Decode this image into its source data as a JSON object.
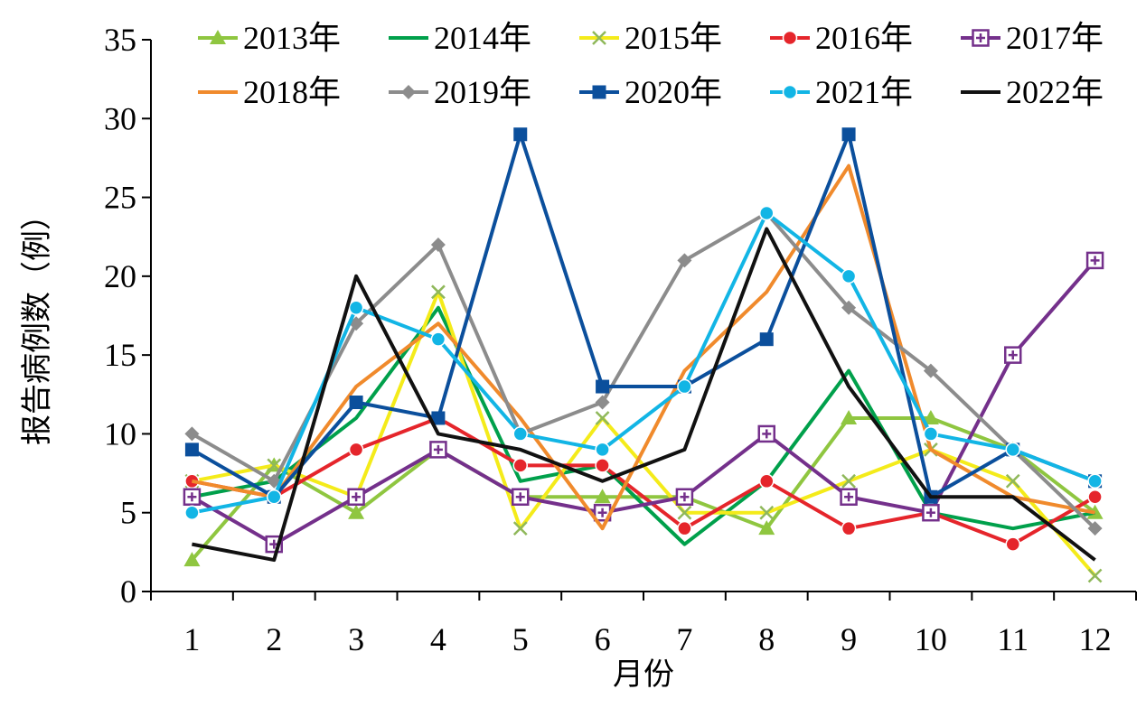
{
  "chart_data": {
    "type": "line",
    "xlabel": "月份",
    "ylabel": "报告病例数（例）",
    "categories": [
      "1",
      "2",
      "3",
      "4",
      "5",
      "6",
      "7",
      "8",
      "9",
      "10",
      "11",
      "12"
    ],
    "ylim": [
      0,
      35
    ],
    "yticks": [
      "0",
      "5",
      "10",
      "15",
      "20",
      "25",
      "30",
      "35"
    ],
    "legend_position": "top",
    "series": [
      {
        "name": "2013年",
        "color": "#8fc640",
        "marker": "triangle",
        "values": [
          2,
          8,
          5,
          9,
          6,
          6,
          6,
          4,
          11,
          11,
          9,
          5
        ]
      },
      {
        "name": "2014年",
        "color": "#00a04b",
        "marker": "none",
        "values": [
          6,
          7,
          11,
          18,
          7,
          8,
          3,
          7,
          14,
          5,
          4,
          5
        ]
      },
      {
        "name": "2015年",
        "color": "#f4eb1a",
        "marker": "x",
        "values": [
          7,
          8,
          6,
          19,
          4,
          11,
          5,
          5,
          7,
          9,
          7,
          1
        ]
      },
      {
        "name": "2016年",
        "color": "#e5252b",
        "marker": "circle",
        "values": [
          7,
          6,
          9,
          11,
          8,
          8,
          4,
          7,
          4,
          5,
          3,
          6
        ]
      },
      {
        "name": "2017年",
        "color": "#74308b",
        "marker": "plus",
        "values": [
          6,
          3,
          6,
          9,
          6,
          5,
          6,
          10,
          6,
          5,
          15,
          21
        ]
      },
      {
        "name": "2018年",
        "color": "#f08a2c",
        "marker": "none",
        "values": [
          7,
          6,
          13,
          17,
          11,
          4,
          14,
          19,
          27,
          9,
          6,
          5
        ]
      },
      {
        "name": "2019年",
        "color": "#8c8c8c",
        "marker": "diamond",
        "values": [
          10,
          7,
          17,
          22,
          10,
          12,
          21,
          24,
          18,
          14,
          9,
          4
        ]
      },
      {
        "name": "2020年",
        "color": "#0b4f9c",
        "marker": "square",
        "values": [
          9,
          6,
          12,
          11,
          29,
          13,
          13,
          16,
          29,
          6,
          9,
          7
        ]
      },
      {
        "name": "2021年",
        "color": "#12b5e5",
        "marker": "circle",
        "values": [
          5,
          6,
          18,
          16,
          10,
          9,
          13,
          24,
          20,
          10,
          9,
          7
        ]
      },
      {
        "name": "2022年",
        "color": "#111111",
        "marker": "none",
        "values": [
          3,
          2,
          20,
          10,
          9,
          7,
          9,
          23,
          13,
          6,
          6,
          2
        ]
      }
    ]
  }
}
